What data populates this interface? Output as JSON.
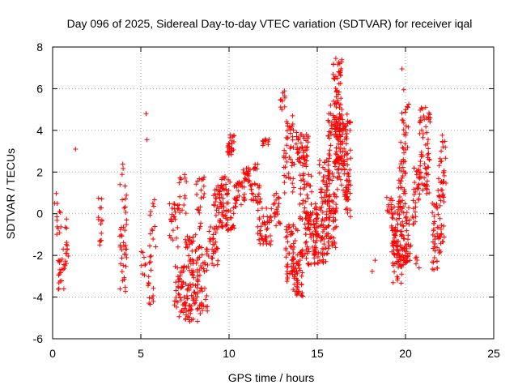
{
  "chart_data": {
    "type": "scatter",
    "title": "Day 096 of 2025, Sidereal Day-to-day VTEC variation (SDTVAR) for receiver iqal",
    "xlabel": "GPS time / hours",
    "ylabel": "SDTVAR / TECUs",
    "xlim": [
      0,
      25
    ],
    "ylim": [
      -6,
      8
    ],
    "x_ticks": [
      0,
      5,
      10,
      15,
      20,
      25
    ],
    "y_ticks": [
      -6,
      -4,
      -2,
      0,
      2,
      4,
      6,
      8
    ],
    "grid": true,
    "marker": "+",
    "series": [
      {
        "name": "SDTVAR",
        "color": "#ff0000",
        "clusters": [
          {
            "x": [
              0.1,
              0.5
            ],
            "y": [
              -1.2,
              1.0
            ],
            "n": 12
          },
          {
            "x": [
              0.3,
              0.7
            ],
            "y": [
              -3.8,
              -1.5
            ],
            "n": 20
          },
          {
            "x": [
              0.7,
              0.9
            ],
            "y": [
              -2.7,
              -0.2
            ],
            "n": 14
          },
          {
            "x": [
              2.6,
              2.8
            ],
            "y": [
              -1.5,
              0.9
            ],
            "n": 14
          },
          {
            "x": [
              3.8,
              4.2
            ],
            "y": [
              -3.8,
              2.5
            ],
            "n": 42
          },
          {
            "x": [
              5.0,
              5.3
            ],
            "y": [
              -3.0,
              -1.8
            ],
            "n": 8
          },
          {
            "x": [
              5.4,
              5.8
            ],
            "y": [
              -4.5,
              -2.0
            ],
            "n": 16
          },
          {
            "x": [
              5.5,
              5.9
            ],
            "y": [
              -1.8,
              0.9
            ],
            "n": 12
          },
          {
            "x": [
              6.6,
              7.2
            ],
            "y": [
              -1.6,
              0.5
            ],
            "n": 25
          },
          {
            "x": [
              6.9,
              7.5
            ],
            "y": [
              -5.0,
              -2.5
            ],
            "n": 45
          },
          {
            "x": [
              7.1,
              7.6
            ],
            "y": [
              0.0,
              1.9
            ],
            "n": 15
          },
          {
            "x": [
              7.5,
              8.3
            ],
            "y": [
              -5.2,
              -1.0
            ],
            "n": 90
          },
          {
            "x": [
              8.2,
              8.8
            ],
            "y": [
              -4.8,
              -1.5
            ],
            "n": 45
          },
          {
            "x": [
              8.1,
              8.6
            ],
            "y": [
              -0.8,
              1.8
            ],
            "n": 20
          },
          {
            "x": [
              8.8,
              9.4
            ],
            "y": [
              -2.5,
              -0.5
            ],
            "n": 30
          },
          {
            "x": [
              9.1,
              9.9
            ],
            "y": [
              -0.8,
              1.8
            ],
            "n": 55
          },
          {
            "x": [
              9.5,
              10.1
            ],
            "y": [
              0.5,
              1.8
            ],
            "n": 15
          },
          {
            "x": [
              9.8,
              10.4
            ],
            "y": [
              -1.0,
              0.4
            ],
            "n": 25
          },
          {
            "x": [
              9.9,
              10.3
            ],
            "y": [
              2.8,
              3.8
            ],
            "n": 25
          },
          {
            "x": [
              10.3,
              10.9
            ],
            "y": [
              0.4,
              1.6
            ],
            "n": 30
          },
          {
            "x": [
              10.8,
              11.2
            ],
            "y": [
              1.5,
              2.2
            ],
            "n": 20
          },
          {
            "x": [
              11.2,
              11.8
            ],
            "y": [
              0.5,
              1.5
            ],
            "n": 25
          },
          {
            "x": [
              11.4,
              11.7
            ],
            "y": [
              2.1,
              2.5
            ],
            "n": 8
          },
          {
            "x": [
              11.6,
              12.4
            ],
            "y": [
              -1.5,
              0.3
            ],
            "n": 45
          },
          {
            "x": [
              11.9,
              12.3
            ],
            "y": [
              3.2,
              3.6
            ],
            "n": 10
          },
          {
            "x": [
              12.5,
              12.9
            ],
            "y": [
              -0.6,
              1.0
            ],
            "n": 20
          },
          {
            "x": [
              12.9,
              13.3
            ],
            "y": [
              5.0,
              5.9
            ],
            "n": 10
          },
          {
            "x": [
              13.1,
              13.7
            ],
            "y": [
              1.0,
              4.5
            ],
            "n": 45
          },
          {
            "x": [
              13.2,
              13.9
            ],
            "y": [
              -3.3,
              -0.5
            ],
            "n": 60
          },
          {
            "x": [
              13.6,
              14.2
            ],
            "y": [
              -4.0,
              -1.5
            ],
            "n": 45
          },
          {
            "x": [
              13.8,
              14.5
            ],
            "y": [
              2.2,
              4.0
            ],
            "n": 50
          },
          {
            "x": [
              14.0,
              14.7
            ],
            "y": [
              -0.8,
              2.0
            ],
            "n": 45
          },
          {
            "x": [
              14.3,
              15.0
            ],
            "y": [
              -2.5,
              0.2
            ],
            "n": 55
          },
          {
            "x": [
              14.8,
              15.6
            ],
            "y": [
              -2.4,
              0.5
            ],
            "n": 70
          },
          {
            "x": [
              15.1,
              15.7
            ],
            "y": [
              0.2,
              2.8
            ],
            "n": 40
          },
          {
            "x": [
              15.5,
              16.1
            ],
            "y": [
              -1.8,
              1.0
            ],
            "n": 55
          },
          {
            "x": [
              15.6,
              16.3
            ],
            "y": [
              1.5,
              4.8
            ],
            "n": 60
          },
          {
            "x": [
              15.9,
              16.4
            ],
            "y": [
              4.5,
              7.4
            ],
            "n": 45
          },
          {
            "x": [
              16.0,
              16.9
            ],
            "y": [
              1.0,
              4.8
            ],
            "n": 110
          },
          {
            "x": [
              16.5,
              16.9
            ],
            "y": [
              -0.2,
              1.2
            ],
            "n": 15
          },
          {
            "x": [
              18.1,
              18.3
            ],
            "y": [
              -2.9,
              -2.2
            ],
            "n": 2
          },
          {
            "x": [
              18.9,
              19.3
            ],
            "y": [
              0.0,
              0.8
            ],
            "n": 12
          },
          {
            "x": [
              19.2,
              20.3
            ],
            "y": [
              -2.5,
              0.5
            ],
            "n": 120
          },
          {
            "x": [
              19.3,
              19.8
            ],
            "y": [
              -3.5,
              -1.0
            ],
            "n": 25
          },
          {
            "x": [
              19.6,
              20.0
            ],
            "y": [
              0.5,
              3.2
            ],
            "n": 30
          },
          {
            "x": [
              19.7,
              20.2
            ],
            "y": [
              3.0,
              5.3
            ],
            "n": 20
          },
          {
            "x": [
              20.4,
              20.9
            ],
            "y": [
              -0.5,
              2.2
            ],
            "n": 35
          },
          {
            "x": [
              20.5,
              20.8
            ],
            "y": [
              -2.8,
              -2.0
            ],
            "n": 5
          },
          {
            "x": [
              20.8,
              21.4
            ],
            "y": [
              0.8,
              5.2
            ],
            "n": 60
          },
          {
            "x": [
              21.5,
              22.0
            ],
            "y": [
              -2.8,
              0.5
            ],
            "n": 45
          },
          {
            "x": [
              21.8,
              22.3
            ],
            "y": [
              0.5,
              3.9
            ],
            "n": 35
          },
          {
            "x": [
              22.0,
              22.2
            ],
            "y": [
              -1.5,
              -0.5
            ],
            "n": 8
          }
        ],
        "outliers": [
          {
            "x": 1.3,
            "y": 3.1
          },
          {
            "x": 5.3,
            "y": 4.8
          },
          {
            "x": 5.35,
            "y": 3.55
          },
          {
            "x": 13.6,
            "y": 4.7
          },
          {
            "x": 19.8,
            "y": 6.95
          },
          {
            "x": 19.9,
            "y": 5.95
          },
          {
            "x": 16.05,
            "y": 7.45
          },
          {
            "x": 15.75,
            "y": 5.2
          }
        ]
      }
    ]
  }
}
